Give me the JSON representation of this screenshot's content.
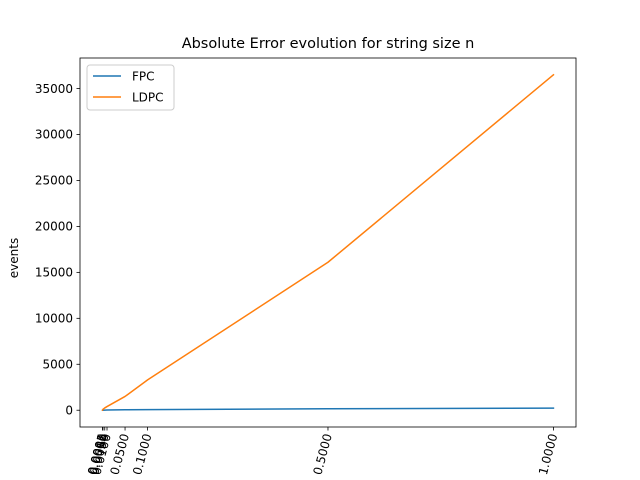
{
  "chart_data": {
    "type": "line",
    "title": "Absolute Error evolution for string size n",
    "xlabel": "",
    "ylabel": "events",
    "x": [
      0.0001,
      0.0005,
      0.001,
      0.005,
      0.01,
      0.05,
      0.1,
      0.5,
      1.0
    ],
    "x_tick_values": [
      0.0001,
      0.0005,
      0.001,
      0.005,
      0.01,
      0.05,
      0.1,
      0.5,
      1.0
    ],
    "x_tick_labels": [
      "0.0001",
      "0.0005",
      "0.0010",
      "0.0050",
      "0.0100",
      "0.0500",
      "0.1000",
      "0.5000",
      "1.0000"
    ],
    "y_tick_values": [
      0,
      5000,
      10000,
      15000,
      20000,
      25000,
      30000,
      35000
    ],
    "y_tick_labels": [
      "0",
      "5000",
      "10000",
      "15000",
      "20000",
      "25000",
      "30000",
      "35000"
    ],
    "xlim": [
      -0.0499,
      1.05
    ],
    "ylim": [
      -1825,
      38325
    ],
    "series": [
      {
        "name": "FPC",
        "color": "#1f77b4",
        "values": [
          0,
          2,
          4,
          12,
          20,
          45,
          70,
          160,
          230
        ]
      },
      {
        "name": "LDPC",
        "color": "#ff7f0e",
        "values": [
          10,
          50,
          100,
          250,
          400,
          1500,
          3300,
          16100,
          36500
        ]
      }
    ],
    "legend": "top-left",
    "grid": false
  }
}
